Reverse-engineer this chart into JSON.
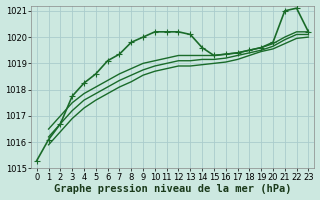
{
  "background_color": "#cce8e0",
  "grid_color": "#aacccc",
  "line_color": "#1a6b2a",
  "title": "Graphe pression niveau de la mer (hPa)",
  "xlim": [
    -0.5,
    23.5
  ],
  "ylim": [
    1015.0,
    1021.2
  ],
  "yticks": [
    1015,
    1016,
    1017,
    1018,
    1019,
    1020,
    1021
  ],
  "xticks": [
    0,
    1,
    2,
    3,
    4,
    5,
    6,
    7,
    8,
    9,
    10,
    11,
    12,
    13,
    14,
    15,
    16,
    17,
    18,
    19,
    20,
    21,
    22,
    23
  ],
  "series": [
    {
      "x": [
        0,
        1,
        2,
        3,
        4,
        5,
        6,
        7,
        8,
        9,
        10,
        11,
        12,
        13,
        14,
        15,
        16,
        17,
        18,
        19,
        20,
        21,
        22,
        23
      ],
      "y": [
        1015.3,
        1016.1,
        1016.7,
        1017.75,
        1018.25,
        1018.6,
        1019.1,
        1019.35,
        1019.8,
        1020.0,
        1020.2,
        1020.2,
        1020.2,
        1020.1,
        1019.6,
        1019.3,
        1019.35,
        1019.4,
        1019.5,
        1019.6,
        1019.8,
        1021.0,
        1021.1,
        1020.2
      ],
      "marker": "+",
      "markersize": 4,
      "linewidth": 1.2
    },
    {
      "x": [
        1,
        2,
        3,
        4,
        5,
        6,
        7,
        8,
        9,
        10,
        11,
        12,
        13,
        14,
        15,
        16,
        17,
        18,
        19,
        20,
        21,
        22,
        23
      ],
      "y": [
        1016.5,
        1017.0,
        1017.5,
        1017.85,
        1018.1,
        1018.35,
        1018.6,
        1018.8,
        1019.0,
        1019.1,
        1019.2,
        1019.3,
        1019.3,
        1019.3,
        1019.3,
        1019.35,
        1019.4,
        1019.5,
        1019.6,
        1019.75,
        1020.0,
        1020.2,
        1020.2
      ],
      "marker": null,
      "markersize": 0,
      "linewidth": 1.0
    },
    {
      "x": [
        1,
        2,
        3,
        4,
        5,
        6,
        7,
        8,
        9,
        10,
        11,
        12,
        13,
        14,
        15,
        16,
        17,
        18,
        19,
        20,
        21,
        22,
        23
      ],
      "y": [
        1016.2,
        1016.7,
        1017.2,
        1017.6,
        1017.85,
        1018.1,
        1018.35,
        1018.55,
        1018.75,
        1018.9,
        1019.0,
        1019.1,
        1019.1,
        1019.15,
        1019.15,
        1019.2,
        1019.3,
        1019.4,
        1019.5,
        1019.65,
        1019.9,
        1020.1,
        1020.1
      ],
      "marker": null,
      "markersize": 0,
      "linewidth": 1.0
    },
    {
      "x": [
        1,
        2,
        3,
        4,
        5,
        6,
        7,
        8,
        9,
        10,
        11,
        12,
        13,
        14,
        15,
        16,
        17,
        18,
        19,
        20,
        21,
        22,
        23
      ],
      "y": [
        1015.9,
        1016.4,
        1016.9,
        1017.3,
        1017.6,
        1017.85,
        1018.1,
        1018.3,
        1018.55,
        1018.7,
        1018.8,
        1018.9,
        1018.9,
        1018.95,
        1019.0,
        1019.05,
        1019.15,
        1019.3,
        1019.45,
        1019.55,
        1019.75,
        1019.95,
        1020.0
      ],
      "marker": null,
      "markersize": 0,
      "linewidth": 1.0
    }
  ],
  "title_fontsize": 7.5,
  "tick_fontsize": 6
}
